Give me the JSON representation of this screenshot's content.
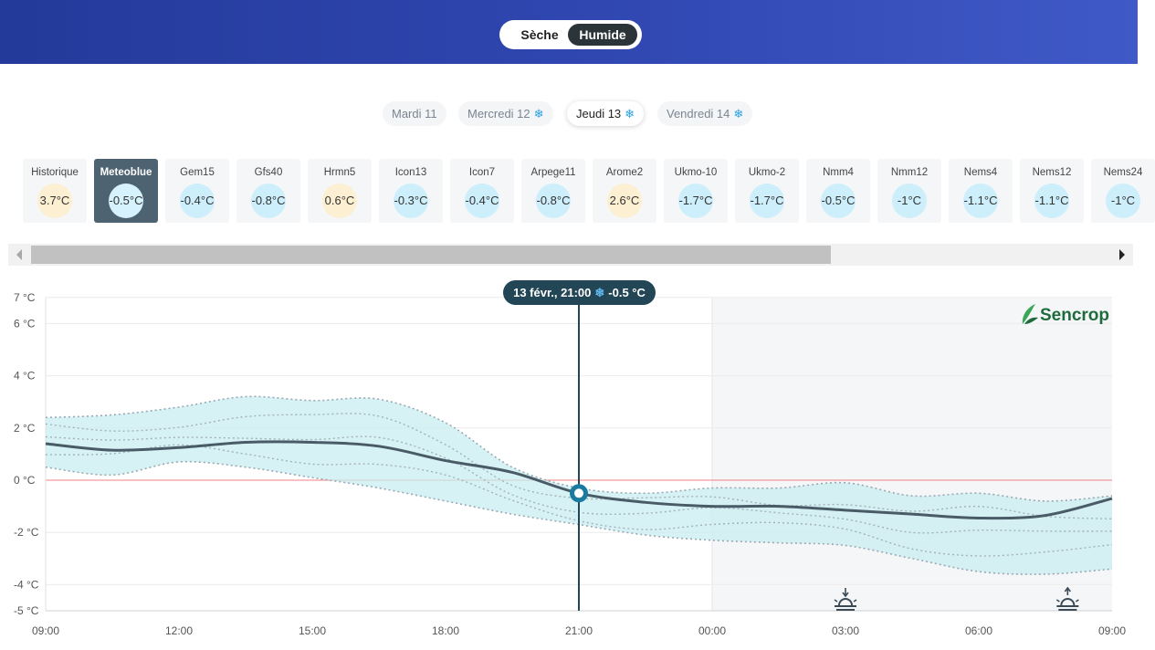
{
  "mode_toggle": {
    "dry": "Sèche",
    "wet": "Humide",
    "selected": "wet"
  },
  "days": [
    {
      "label": "Mardi 11",
      "snow": false
    },
    {
      "label": "Mercredi 12",
      "snow": true
    },
    {
      "label": "Jeudi 13",
      "snow": true,
      "active": true
    },
    {
      "label": "Vendredi 14",
      "snow": true
    }
  ],
  "snow_icon": "❄",
  "models": [
    {
      "name": "Historique",
      "value": "3.7°C",
      "tone": "warm"
    },
    {
      "name": "Meteoblue",
      "value": "-0.5°C",
      "tone": "cold",
      "active": true
    },
    {
      "name": "Gem15",
      "value": "-0.4°C",
      "tone": "cold"
    },
    {
      "name": "Gfs40",
      "value": "-0.8°C",
      "tone": "cold"
    },
    {
      "name": "Hrmn5",
      "value": "0.6°C",
      "tone": "warm"
    },
    {
      "name": "Icon13",
      "value": "-0.3°C",
      "tone": "cold"
    },
    {
      "name": "Icon7",
      "value": "-0.4°C",
      "tone": "cold"
    },
    {
      "name": "Arpege11",
      "value": "-0.8°C",
      "tone": "cold"
    },
    {
      "name": "Arome2",
      "value": "2.6°C",
      "tone": "warm"
    },
    {
      "name": "Ukmo-10",
      "value": "-1.7°C",
      "tone": "cold"
    },
    {
      "name": "Ukmo-2",
      "value": "-1.7°C",
      "tone": "cold"
    },
    {
      "name": "Nmm4",
      "value": "-0.5°C",
      "tone": "cold"
    },
    {
      "name": "Nmm12",
      "value": "-1°C",
      "tone": "cold"
    },
    {
      "name": "Nems4",
      "value": "-1.1°C",
      "tone": "cold"
    },
    {
      "name": "Nems12",
      "value": "-1.1°C",
      "tone": "cold"
    },
    {
      "name": "Nems24",
      "value": "-1°C",
      "tone": "cold"
    }
  ],
  "tooltip": {
    "date": "13 févr., 21:00",
    "value": "-0.5 °C"
  },
  "brand": "Sencrop",
  "colors": {
    "header": "#2f46b0",
    "line": "#4a5b68",
    "band": "#c9eef0",
    "zero_line": "#f08080",
    "marker": "#1a7aa0"
  },
  "chart_data": {
    "type": "line",
    "y_ticks": [
      "7 °C",
      "6 °C",
      "4 °C",
      "2 °C",
      "0 °C",
      "-2 °C",
      "-4 °C",
      "-5 °C"
    ],
    "x_ticks": [
      "09:00",
      "12:00",
      "15:00",
      "18:00",
      "21:00",
      "00:00",
      "03:00",
      "06:00",
      "09:00"
    ],
    "ylim": [
      -5,
      7
    ],
    "x_hours": [
      0,
      24
    ],
    "selected_hour": 12,
    "night_start_hour": 15,
    "sunset_hour": 18,
    "sunrise_hour": 23,
    "main_series": {
      "x": [
        0,
        1.5,
        3,
        4.5,
        6,
        7.5,
        9,
        10.5,
        12,
        13.5,
        15,
        16.5,
        18,
        19.5,
        21,
        22.5,
        24
      ],
      "y": [
        1.4,
        1.15,
        1.25,
        1.45,
        1.45,
        1.3,
        0.75,
        0.3,
        -0.5,
        -0.85,
        -1.0,
        -1.0,
        -1.15,
        -1.3,
        -1.45,
        -1.35,
        -0.7
      ]
    },
    "envelope_max": {
      "x": [
        0,
        1.5,
        3,
        4.5,
        6,
        7.5,
        9,
        10.5,
        12,
        13.5,
        15,
        16.5,
        18,
        19.5,
        21,
        22.5,
        24
      ],
      "y": [
        2.4,
        2.5,
        2.8,
        3.2,
        3.05,
        3.1,
        2.2,
        0.5,
        -0.3,
        -0.5,
        -0.3,
        -0.3,
        -0.1,
        -0.6,
        -0.5,
        -0.8,
        -0.6
      ]
    },
    "envelope_min": {
      "x": [
        0,
        1.5,
        3,
        4.5,
        6,
        7.5,
        9,
        10.5,
        12,
        13.5,
        15,
        16.5,
        18,
        19.5,
        21,
        22.5,
        24
      ],
      "y": [
        0.5,
        0.2,
        0.7,
        0.5,
        0.1,
        -0.3,
        -0.8,
        -1.3,
        -1.7,
        -2.1,
        -2.3,
        -2.4,
        -2.5,
        -3.0,
        -3.5,
        -3.6,
        -3.4
      ]
    }
  }
}
